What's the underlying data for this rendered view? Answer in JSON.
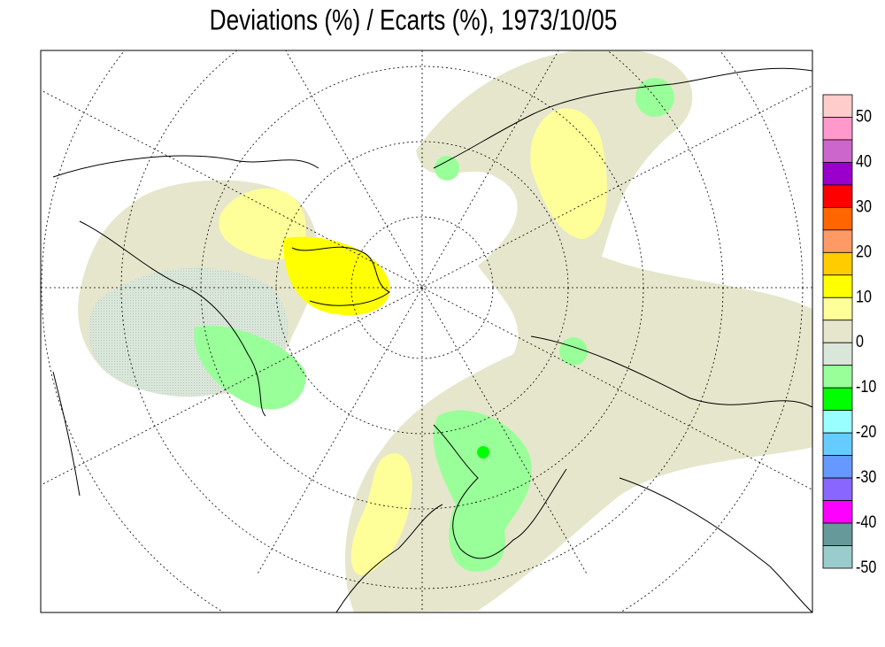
{
  "title": "Deviations (%) / Ecarts (%), 1973/10/05",
  "legend": {
    "colors": [
      "#ffcccc",
      "#ff99cc",
      "#cc66cc",
      "#9900cc",
      "#ff0000",
      "#ff6600",
      "#ff9966",
      "#ffcc00",
      "#ffff00",
      "#ffff99",
      "#e6e6cc",
      "#d9e6d9",
      "#99ff99",
      "#00ff00",
      "#99ffff",
      "#66ccff",
      "#6699ff",
      "#8866ff",
      "#ff00ff",
      "#669999",
      "#99cccc"
    ],
    "ticks": [
      50,
      40,
      30,
      20,
      10,
      0,
      -10,
      -20,
      -30,
      -40,
      -50
    ]
  }
}
